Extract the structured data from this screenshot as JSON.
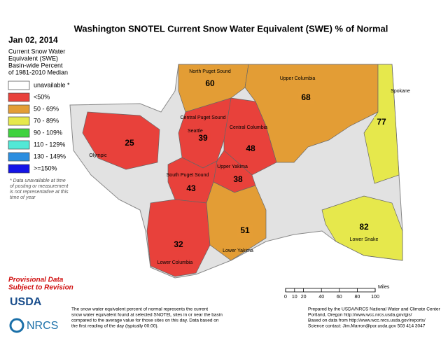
{
  "title": "Washington SNOTEL Current Snow Water Equivalent (SWE) % of Normal",
  "date": "Jan 02, 2014",
  "legend": {
    "heading": [
      "Current Snow Water",
      "Equivalent (SWE)",
      "Basin-wide Percent",
      "of 1981-2010 Median"
    ],
    "items": [
      {
        "label": "unavailable *",
        "color": "#ffffff"
      },
      {
        "label": "<50%",
        "color": "#e8413b"
      },
      {
        "label": "50 - 69%",
        "color": "#e39d35"
      },
      {
        "label": "70 - 89%",
        "color": "#e6e84c"
      },
      {
        "label": "90 - 109%",
        "color": "#3fd23f"
      },
      {
        "label": "110 - 129%",
        "color": "#52e8d6"
      },
      {
        "label": "130 - 149%",
        "color": "#2b8ee0"
      },
      {
        "label": ">=150%",
        "color": "#1414e6"
      }
    ],
    "note": [
      "* Data unavailable at time",
      "of posting or measurement",
      "is not representative at this",
      "time of year"
    ]
  },
  "provisional": [
    "Provisional Data",
    "Subject to Revision"
  ],
  "logos": [
    "USDA",
    "NRCS"
  ],
  "description": [
    "The snow water equivalent percent of normal represents the current",
    "snow water equivalent found at selected SNOTEL sites in or near the basin",
    "compared to the average value for those sites on this day. Data based on",
    "the first reading of the day (typically 00:00)."
  ],
  "credits": [
    "Prepared by the USDA/NRCS National Water and Climate Center",
    "Portland, Oregon http://www.wcc.nrcs.usda.gov/gis/",
    "Based on data from http://www.wcc.nrcs.usda.gov/reports/",
    "Science contact: Jim.Marron@por.usda.gov 503 414 3047"
  ],
  "scale": {
    "unit": "Miles",
    "ticks": [
      0,
      10,
      20,
      40,
      60,
      80,
      100
    ]
  },
  "basins": [
    {
      "name": "Olympic",
      "value": 25,
      "color": "#e8413b"
    },
    {
      "name": "North Puget Sound",
      "value": 60,
      "color": "#e39d35"
    },
    {
      "name": "Upper Columbia",
      "value": 68,
      "color": "#e39d35"
    },
    {
      "name": "Spokane",
      "value": 77,
      "color": "#e6e84c"
    },
    {
      "name": "Central Puget Sound",
      "value": 39,
      "color": "#e8413b"
    },
    {
      "name": "Central Columbia",
      "value": 48,
      "color": "#e8413b"
    },
    {
      "name": "Upper Yakima",
      "value": 38,
      "color": "#e8413b"
    },
    {
      "name": "South Puget Sound",
      "value": 43,
      "color": "#e8413b"
    },
    {
      "name": "Lower Columbia",
      "value": 32,
      "color": "#e8413b"
    },
    {
      "name": "Lower Yakima",
      "value": 51,
      "color": "#e39d35"
    },
    {
      "name": "Lower Snake",
      "value": 82,
      "color": "#e6e84c"
    }
  ],
  "cities": [
    "Seattle"
  ]
}
